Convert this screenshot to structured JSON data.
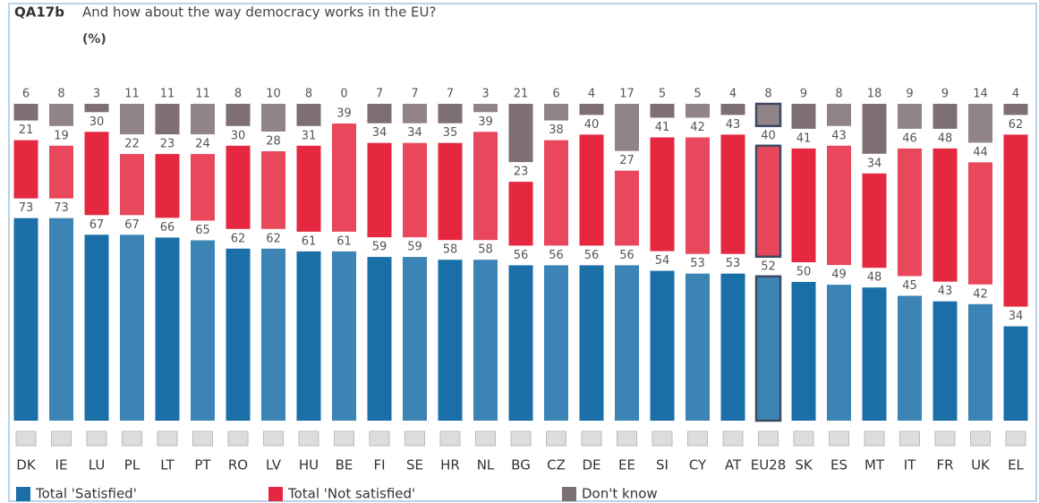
{
  "chart_data": {
    "type": "stacked_bar",
    "title": "QA17b",
    "subtitle": "And how about the way democracy works in the EU?",
    "unit_label": "(%)",
    "categories": [
      "DK",
      "IE",
      "LU",
      "PL",
      "LT",
      "PT",
      "RO",
      "LV",
      "HU",
      "BE",
      "FI",
      "SE",
      "HR",
      "NL",
      "BG",
      "CZ",
      "DE",
      "EE",
      "SI",
      "CY",
      "AT",
      "EU28",
      "SK",
      "ES",
      "MT",
      "IT",
      "FR",
      "UK",
      "EL"
    ],
    "highlight": "EU28",
    "series": [
      {
        "name": "Total 'Satisfied'",
        "color": "#1a6fa8",
        "values": [
          73,
          73,
          67,
          67,
          66,
          65,
          62,
          62,
          61,
          61,
          59,
          59,
          58,
          58,
          56,
          56,
          56,
          56,
          54,
          53,
          53,
          52,
          50,
          49,
          48,
          45,
          43,
          42,
          34
        ]
      },
      {
        "name": "Total 'Not satisfied'",
        "color": "#e5283f",
        "values": [
          21,
          19,
          30,
          22,
          23,
          24,
          30,
          28,
          31,
          39,
          34,
          34,
          35,
          39,
          23,
          38,
          40,
          27,
          41,
          42,
          43,
          40,
          41,
          43,
          34,
          46,
          48,
          44,
          62
        ]
      },
      {
        "name": "Don't know",
        "color": "#7d6f72",
        "values": [
          6,
          8,
          3,
          11,
          11,
          11,
          8,
          10,
          8,
          0,
          7,
          7,
          7,
          3,
          21,
          6,
          4,
          17,
          5,
          5,
          4,
          8,
          9,
          8,
          18,
          9,
          9,
          14,
          4
        ]
      }
    ]
  }
}
